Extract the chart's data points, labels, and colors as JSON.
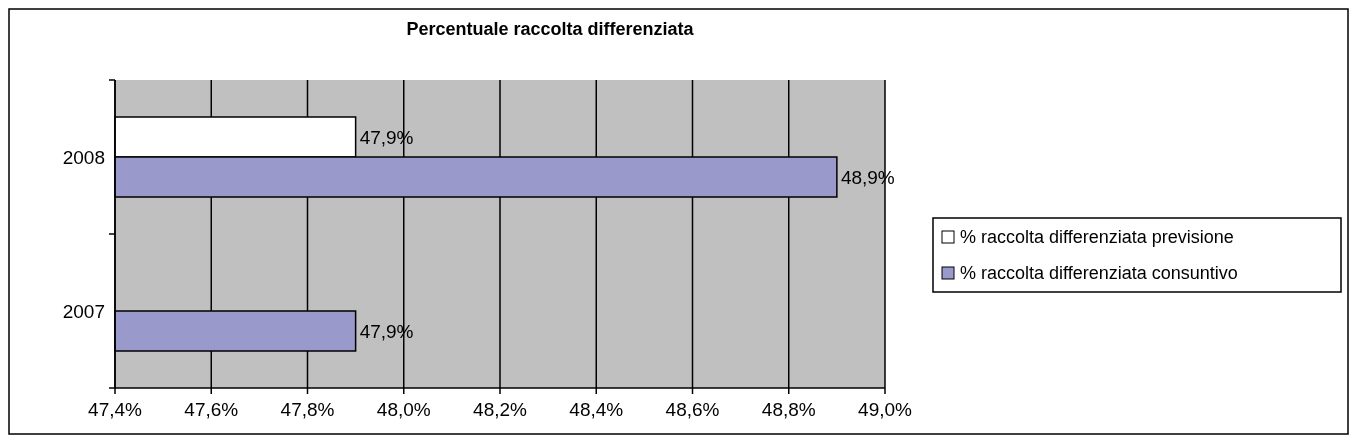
{
  "chart_data": {
    "type": "bar",
    "orientation": "horizontal",
    "title": "Percentuale raccolta differenziata",
    "categories": [
      "2008",
      "2007"
    ],
    "series": [
      {
        "name": "% raccolta differenziata previsione",
        "color": "#ffffff",
        "values": [
          47.9,
          null
        ],
        "value_labels": [
          "47,9%",
          null
        ]
      },
      {
        "name": "% raccolta differenziata consuntivo",
        "color": "#9999cc",
        "values": [
          48.9,
          47.9
        ],
        "value_labels": [
          "48,9%",
          "47,9%"
        ]
      }
    ],
    "xlim": [
      47.4,
      49.0
    ],
    "xticks": [
      {
        "value": 47.4,
        "label": "47,4%"
      },
      {
        "value": 47.6,
        "label": "47,6%"
      },
      {
        "value": 47.8,
        "label": "47,8%"
      },
      {
        "value": 48.0,
        "label": "48,0%"
      },
      {
        "value": 48.2,
        "label": "48,2%"
      },
      {
        "value": 48.4,
        "label": "48,4%"
      },
      {
        "value": 48.6,
        "label": "48,6%"
      },
      {
        "value": 48.8,
        "label": "48,8%"
      },
      {
        "value": 49.0,
        "label": "49,0%"
      }
    ],
    "grid": "x",
    "legend": "right"
  }
}
